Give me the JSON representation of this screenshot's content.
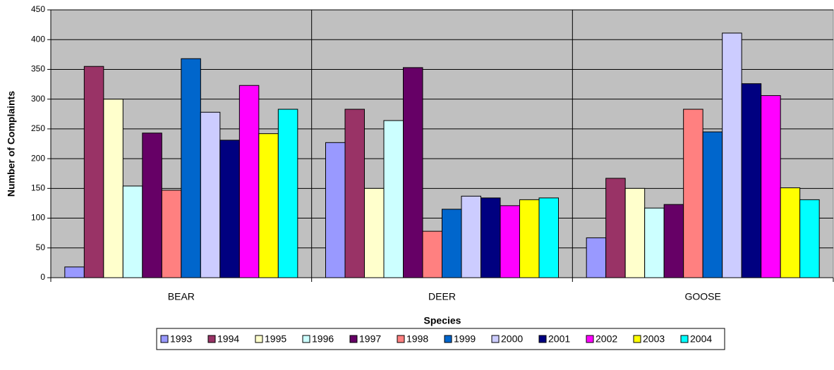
{
  "chart_data": {
    "type": "bar",
    "x_label": "Species",
    "y_label": "Number of Complaints",
    "categories": [
      "BEAR",
      "DEER",
      "GOOSE"
    ],
    "series": [
      {
        "name": "1993",
        "color": "#9999FF",
        "values": [
          18,
          227,
          67
        ]
      },
      {
        "name": "1994",
        "color": "#993366",
        "values": [
          355,
          283,
          167
        ]
      },
      {
        "name": "1995",
        "color": "#FFFFCC",
        "values": [
          300,
          150,
          150
        ]
      },
      {
        "name": "1996",
        "color": "#CCFFFF",
        "values": [
          154,
          264,
          117
        ]
      },
      {
        "name": "1997",
        "color": "#660066",
        "values": [
          243,
          353,
          123
        ]
      },
      {
        "name": "1998",
        "color": "#FF8080",
        "values": [
          147,
          78,
          283
        ]
      },
      {
        "name": "1999",
        "color": "#0066CC",
        "values": [
          368,
          115,
          245
        ]
      },
      {
        "name": "2000",
        "color": "#CCCCFF",
        "values": [
          278,
          137,
          411
        ]
      },
      {
        "name": "2001",
        "color": "#000080",
        "values": [
          231,
          134,
          326
        ]
      },
      {
        "name": "2002",
        "color": "#FF00FF",
        "values": [
          323,
          121,
          306
        ]
      },
      {
        "name": "2003",
        "color": "#FFFF00",
        "values": [
          242,
          131,
          151
        ]
      },
      {
        "name": "2004",
        "color": "#00FFFF",
        "values": [
          283,
          134,
          131
        ]
      }
    ],
    "ylim": [
      0,
      450
    ],
    "yticks": [
      0,
      50,
      100,
      150,
      200,
      250,
      300,
      350,
      400,
      450
    ],
    "grid": true,
    "legend": "bottom"
  }
}
